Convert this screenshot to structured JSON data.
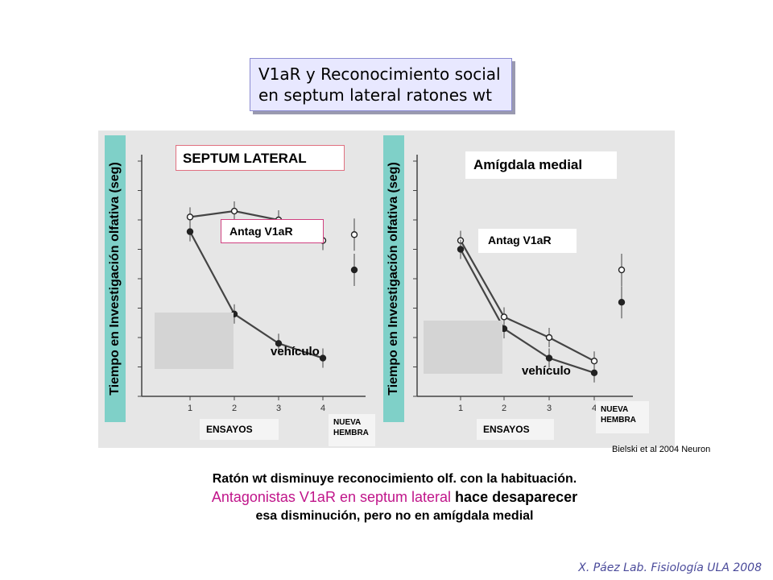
{
  "slide": {
    "title_line1": "V1aR y Reconocimiento social",
    "title_line2": "en septum lateral ratones wt",
    "citation": "Bielski et al 2004 Neuron",
    "caption_line1": "Ratón wt disminuye reconocimiento olf. con la habituación.",
    "caption_line2_accent": "Antagonistas V1aR",
    "caption_line2_mid": " en ",
    "caption_line2_accent2": "septum lateral",
    "caption_line2_end": " hace desaparecer",
    "caption_line3": "esa disminución, pero no en amígdala medial",
    "footer": "X. Páez  Lab. Fisiología ULA 2008"
  },
  "chart_data": [
    {
      "type": "line",
      "title": "SEPTUM LATERAL",
      "ylabel": "Tiempo en Investigación olfativa (seg)",
      "xlabel": "ENSAYOS",
      "categories": [
        "1",
        "2",
        "3",
        "4"
      ],
      "ylim": [
        0,
        80
      ],
      "extra_category_label": "NUEVA HEMBRA",
      "series": [
        {
          "name": "Antag V1aR",
          "values": [
            61,
            63,
            60,
            53
          ],
          "extra_value": 55
        },
        {
          "name": "vehículo",
          "values": [
            56,
            28,
            18,
            13
          ],
          "extra_value": 43
        }
      ]
    },
    {
      "type": "line",
      "title": "Amígdala medial",
      "ylabel": "Tiempo en Investigación olfativa (seg)",
      "xlabel": "ENSAYOS",
      "categories": [
        "1",
        "2",
        "3",
        "4"
      ],
      "ylim": [
        0,
        80
      ],
      "extra_category_label": "NUEVA HEMBRA",
      "series": [
        {
          "name": "Antag V1aR",
          "values": [
            53,
            27,
            20,
            12
          ],
          "extra_value": 43
        },
        {
          "name": "vehículo",
          "values": [
            50,
            23,
            13,
            8
          ],
          "extra_value": 32
        }
      ]
    }
  ],
  "colors": {
    "plot_background": "#e6e6e6",
    "ylabel_background": "#7fd0c8",
    "accent": "#c0158a",
    "line": "#444444"
  }
}
